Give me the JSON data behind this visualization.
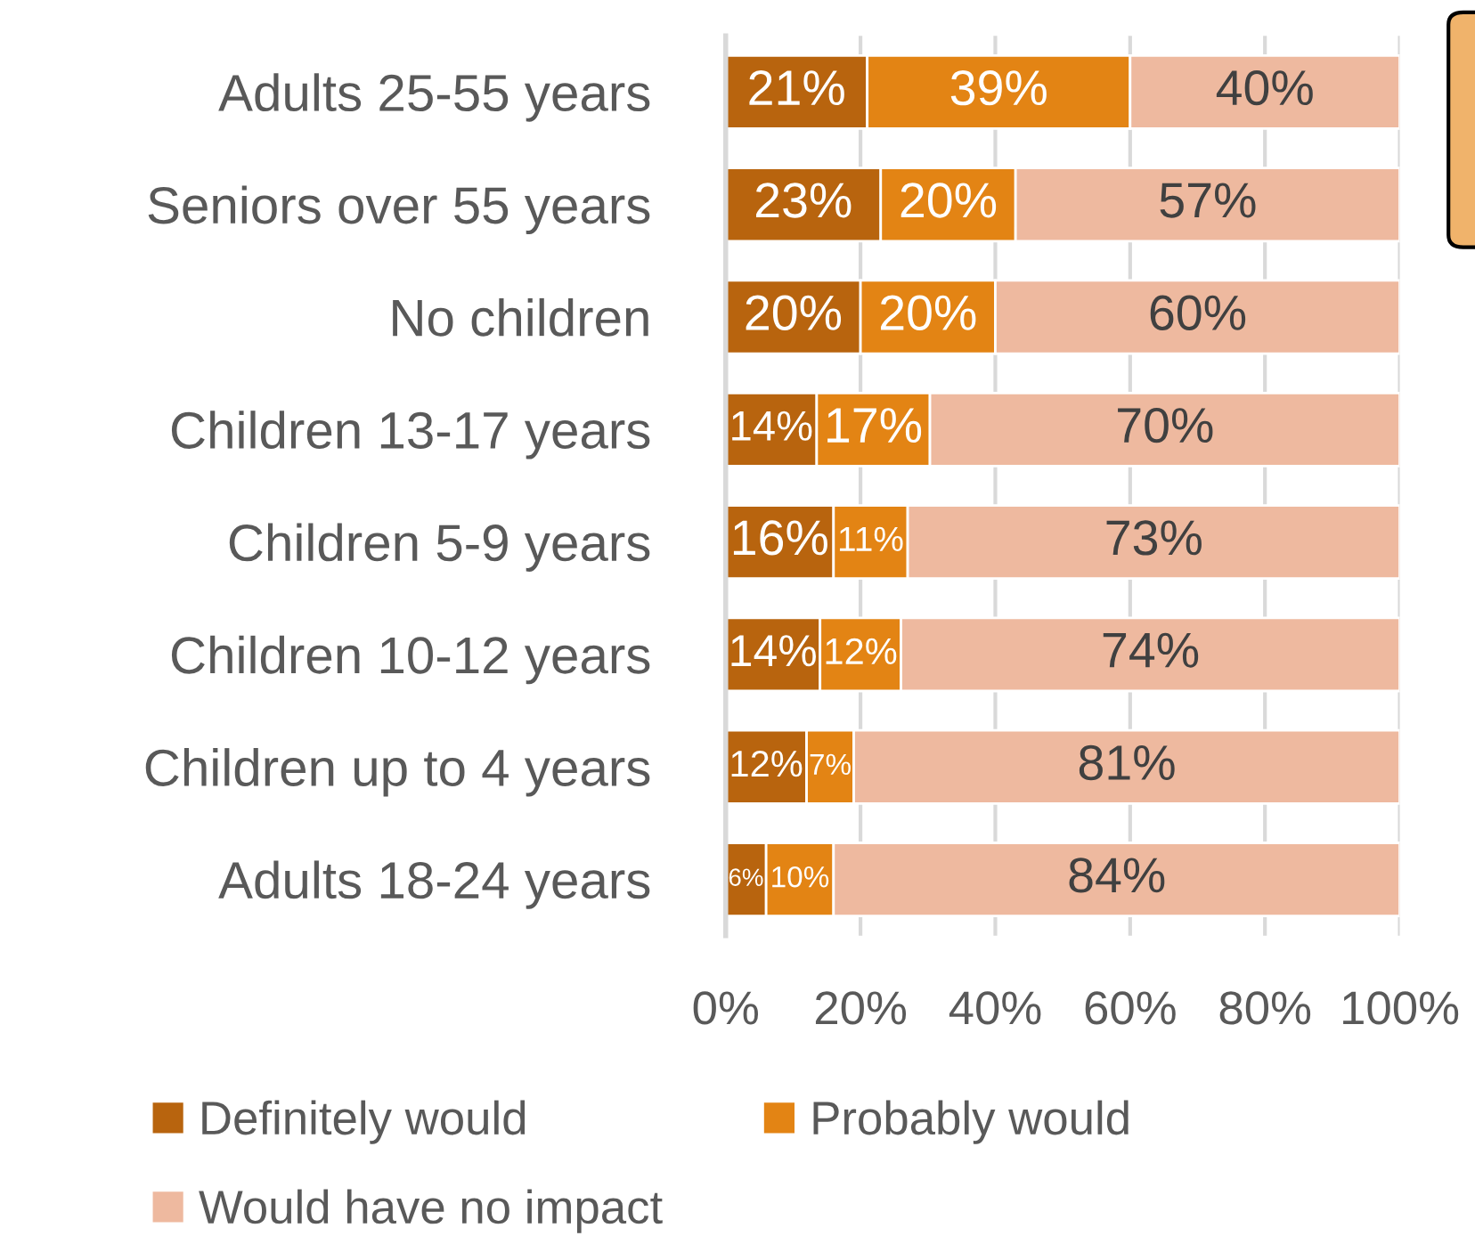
{
  "chart_data": {
    "type": "bar",
    "orientation": "horizontal",
    "stacked": true,
    "categories": [
      "Adults 25-55 years",
      "Seniors over 55 years",
      "No children",
      "Children 13-17 years",
      "Children 5-9 years",
      "Children 10-12 years",
      "Children up to 4 years",
      "Adults 18-24 years"
    ],
    "series": [
      {
        "name": "Definitely would",
        "color": "#b8640e",
        "values": [
          21,
          23,
          20,
          13.5,
          16,
          14,
          12,
          6
        ],
        "value_labels": [
          "21%",
          "23%",
          "20%",
          "14%",
          "16%",
          "14%",
          "12%",
          "6%"
        ]
      },
      {
        "name": "Probably would",
        "color": "#e38414",
        "values": [
          39,
          20,
          20,
          16.8,
          11,
          12,
          7,
          10
        ],
        "value_labels": [
          "39%",
          "20%",
          "20%",
          "17%",
          "11%",
          "12%",
          "7%",
          "10%"
        ]
      },
      {
        "name": "Would have no impact",
        "color": "#eeb99f",
        "values": [
          40,
          57,
          60,
          69.7,
          73,
          74,
          81,
          84
        ],
        "value_labels": [
          "40%",
          "57%",
          "60%",
          "70%",
          "73%",
          "74%",
          "81%",
          "84%"
        ]
      }
    ],
    "xlim": [
      0,
      100
    ],
    "xticks": [
      {
        "value": 0,
        "label": "0%"
      },
      {
        "value": 20,
        "label": "20%"
      },
      {
        "value": 40,
        "label": "40%"
      },
      {
        "value": 60,
        "label": "60%"
      },
      {
        "value": 80,
        "label": "80%"
      },
      {
        "value": 100,
        "label": "100%"
      }
    ],
    "grid": "x",
    "legend": "bottom"
  }
}
